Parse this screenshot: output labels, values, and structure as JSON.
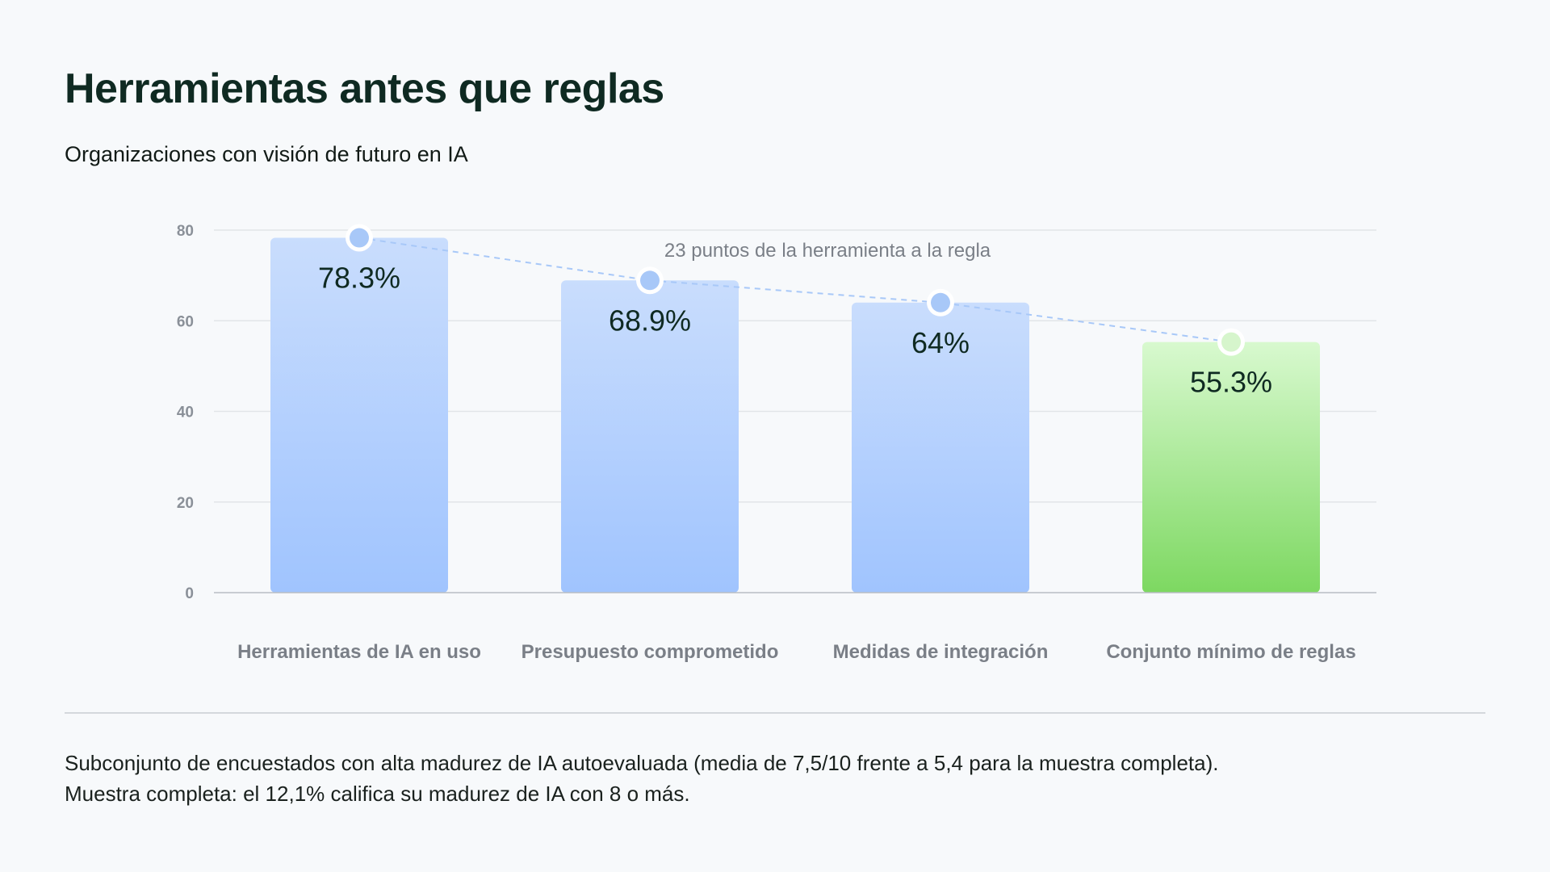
{
  "title": "Herramientas antes que reglas",
  "subtitle": "Organizaciones con visión de futuro en IA",
  "footnote": {
    "line1": "Subconjunto de encuestados con alta madurez de IA autoevaluada (media de 7,5/10 frente a 5,4 para la muestra completa).",
    "line2": "Muestra completa: el 12,1% califica su madurez de IA con 8 o más."
  },
  "colors": {
    "blue_top": "#c9ddfd",
    "blue_bottom": "#a0c4fe",
    "green_top": "#d8f9cf",
    "green_bottom": "#7dd861",
    "marker_blue": "#a8c8f8",
    "marker_green": "#d6f5cc",
    "grid": "#e2e5e8",
    "axis": "#b9bec4",
    "tick_text": "#8a9098",
    "label_text": "#7a7f87"
  },
  "chart_data": {
    "type": "bar",
    "categories": [
      "Herramientas de IA en uso",
      "Presupuesto comprometido",
      "Medidas de integración",
      "Conjunto mínimo de reglas"
    ],
    "values": [
      78.3,
      68.9,
      64,
      55.3
    ],
    "value_labels": [
      "78.3%",
      "68.9%",
      "64%",
      "55.3%"
    ],
    "highlight_index": 3,
    "yticks": [
      0,
      20,
      40,
      60,
      80
    ],
    "ylim": [
      0,
      80
    ],
    "grid": true,
    "connector_line": "dashed",
    "annotation": "23 puntos de la herramienta a la regla"
  }
}
